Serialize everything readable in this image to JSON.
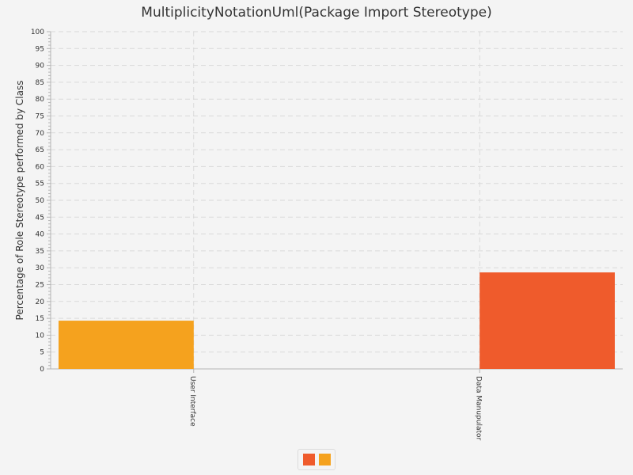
{
  "chart_data": {
    "type": "bar",
    "title": "MultiplicityNotationUml(Package Import Stereotype)",
    "ylabel": "Percentage of Role Stereotype performed by Class",
    "xlabel": "",
    "categories": [
      "User Interface",
      "Data Manupulator"
    ],
    "series": [
      {
        "values": [
          14.3,
          0
        ],
        "color": "#f5a21e"
      },
      {
        "values": [
          0,
          28.6
        ],
        "color": "#ef5b2c"
      }
    ],
    "ylim": [
      0,
      100
    ],
    "ytick_step": 5,
    "y_ticks": [
      "0",
      "5",
      "10",
      "15",
      "20",
      "25",
      "30",
      "35",
      "40",
      "45",
      "50",
      "55",
      "60",
      "65",
      "70",
      "75",
      "80",
      "85",
      "90",
      "95",
      "100"
    ],
    "grid": true,
    "legend_position": "bottom",
    "legend_colors": [
      "#ef5b2c",
      "#f5a21e"
    ]
  }
}
